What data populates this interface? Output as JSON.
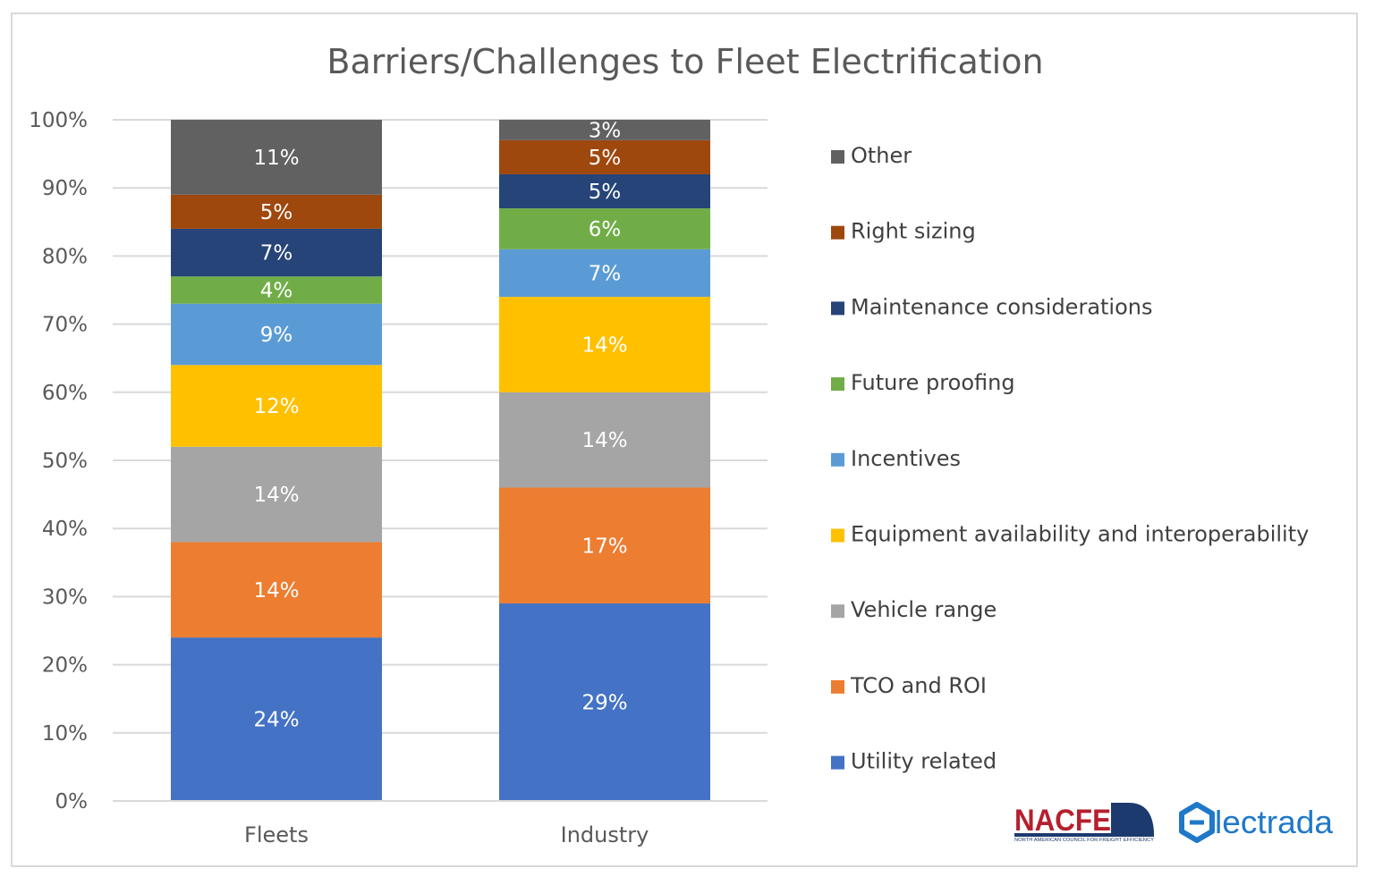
{
  "colors": {
    "Other": "#616161",
    "Right sizing": "#9e480e",
    "Maintenance considerations": "#264478",
    "Future proofing": "#70ad47",
    "Incentives": "#5b9bd5",
    "Equipment availability and interoperability": "#ffc000",
    "Vehicle range": "#a5a5a5",
    "TCO and ROI": "#ed7d31",
    "Utility related": "#4472c4",
    "gridline": "#d9d9d9",
    "nacfe_red": "#b5202e",
    "nacfe_navy": "#1d3a6e",
    "electrada_blue": "#1f78c8"
  },
  "chart_data": {
    "type": "bar",
    "stacked": true,
    "percent_stacked": true,
    "title": "Barriers/Challenges to Fleet Electrification",
    "xlabel": "",
    "ylabel": "",
    "categories": [
      "Fleets",
      "Industry"
    ],
    "ylim": [
      0,
      100
    ],
    "y_ticks": [
      "0%",
      "10%",
      "20%",
      "30%",
      "40%",
      "50%",
      "60%",
      "70%",
      "80%",
      "90%",
      "100%"
    ],
    "grid": true,
    "legend_position": "right",
    "series": [
      {
        "name": "Utility related",
        "values": [
          24,
          29
        ],
        "labels": [
          "24%",
          "29%"
        ]
      },
      {
        "name": "TCO and ROI",
        "values": [
          14,
          17
        ],
        "labels": [
          "14%",
          "17%"
        ]
      },
      {
        "name": "Vehicle range",
        "values": [
          14,
          14
        ],
        "labels": [
          "14%",
          "14%"
        ]
      },
      {
        "name": "Equipment availability and interoperability",
        "values": [
          12,
          14
        ],
        "labels": [
          "12%",
          "14%"
        ]
      },
      {
        "name": "Incentives",
        "values": [
          9,
          7
        ],
        "labels": [
          "9%",
          "7%"
        ]
      },
      {
        "name": "Future proofing",
        "values": [
          4,
          6
        ],
        "labels": [
          "4%",
          "6%"
        ]
      },
      {
        "name": "Maintenance considerations",
        "values": [
          7,
          5
        ],
        "labels": [
          "7%",
          "5%"
        ]
      },
      {
        "name": "Right sizing",
        "values": [
          5,
          5
        ],
        "labels": [
          "5%",
          "5%"
        ]
      },
      {
        "name": "Other",
        "values": [
          11,
          3
        ],
        "labels": [
          "11%",
          "3%"
        ]
      }
    ],
    "legend_order": [
      "Other",
      "Right sizing",
      "Maintenance considerations",
      "Future proofing",
      "Incentives",
      "Equipment availability and interoperability",
      "Vehicle range",
      "TCO and ROI",
      "Utility related"
    ]
  },
  "logos": {
    "nacfe": {
      "name": "NACFE",
      "subtitle": "NORTH AMERICAN COUNCIL FOR FREIGHT EFFICIENCY"
    },
    "electrada": {
      "name": "lectrada"
    }
  }
}
